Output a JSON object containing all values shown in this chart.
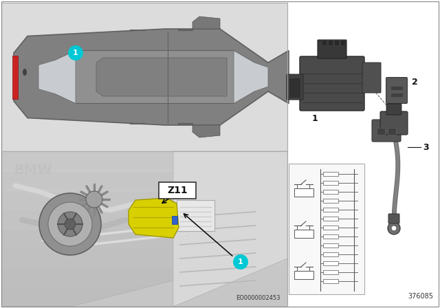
{
  "bg_color": "#ffffff",
  "label_color_cyan": "#00c8d4",
  "car_bg": "#dcdcdc",
  "engine_bg": "#c8c8c8",
  "right_bg": "#ffffff",
  "ref_number1": "EO0000002453",
  "ref_number2": "376085",
  "label_z11": "Z11",
  "yellow_ism": "#d4cc00",
  "dark_part": "#505050",
  "mid_part": "#787878",
  "light_part": "#a0a0a0",
  "line_col": "#222222",
  "panel_border": "#aaaaaa",
  "fig_width": 6.4,
  "fig_height": 4.48,
  "dpi": 100,
  "car_body_color": "#808080",
  "car_body_dark": "#606060",
  "car_roof_color": "#909090",
  "car_glass_color": "#c8ccd0",
  "car_red_accent": "#cc2222",
  "engine_silver": "#b8b8b8",
  "schematic_bg": "#f8f8f8"
}
